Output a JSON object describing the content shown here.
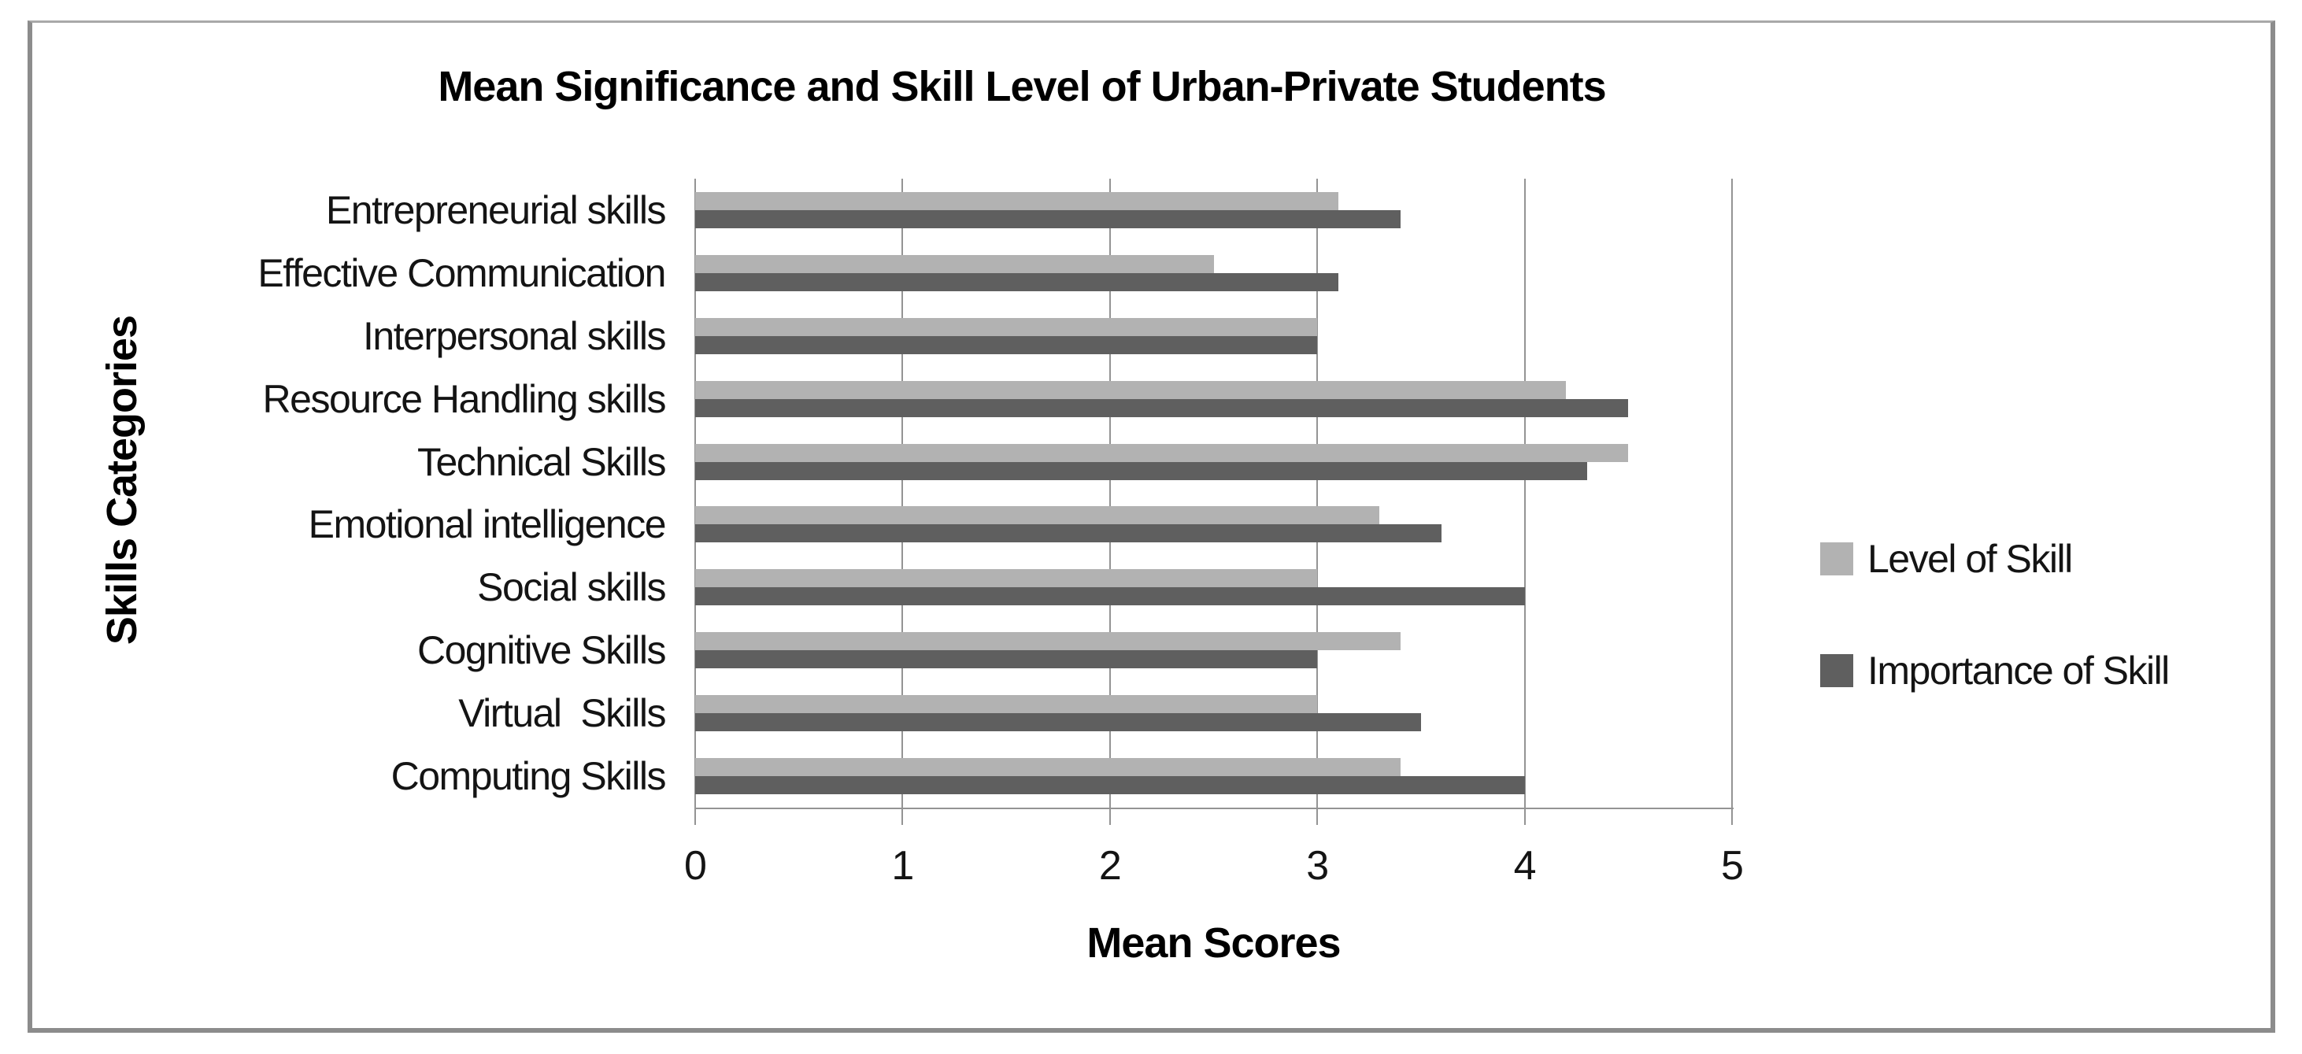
{
  "chart_data": {
    "type": "bar",
    "orientation": "horizontal",
    "title": "Mean Significance and Skill Level of Urban-Private Students",
    "xlabel": "Mean Scores",
    "ylabel": "Skills Categories",
    "xlim": [
      0,
      5
    ],
    "xticks": [
      0,
      1,
      2,
      3,
      4,
      5
    ],
    "grid": true,
    "legend_position": "right",
    "categories": [
      "Entrepreneurial skills",
      "Effective Communication",
      "Interpersonal skills",
      "Resource Handling skills",
      "Technical Skills",
      "Emotional intelligence",
      "Social skills",
      "Cognitive Skills",
      "Virtual  Skills",
      "Computing Skills"
    ],
    "series": [
      {
        "name": "Level of Skill",
        "color": "#b2b2b2",
        "values": [
          3.1,
          2.5,
          3.0,
          4.2,
          4.5,
          3.3,
          3.0,
          3.4,
          3.0,
          3.4
        ]
      },
      {
        "name": "Importance of Skill",
        "color": "#5f5f5f",
        "values": [
          3.4,
          3.1,
          3.0,
          4.5,
          4.3,
          3.6,
          4.0,
          3.0,
          3.5,
          4.0
        ]
      }
    ]
  }
}
